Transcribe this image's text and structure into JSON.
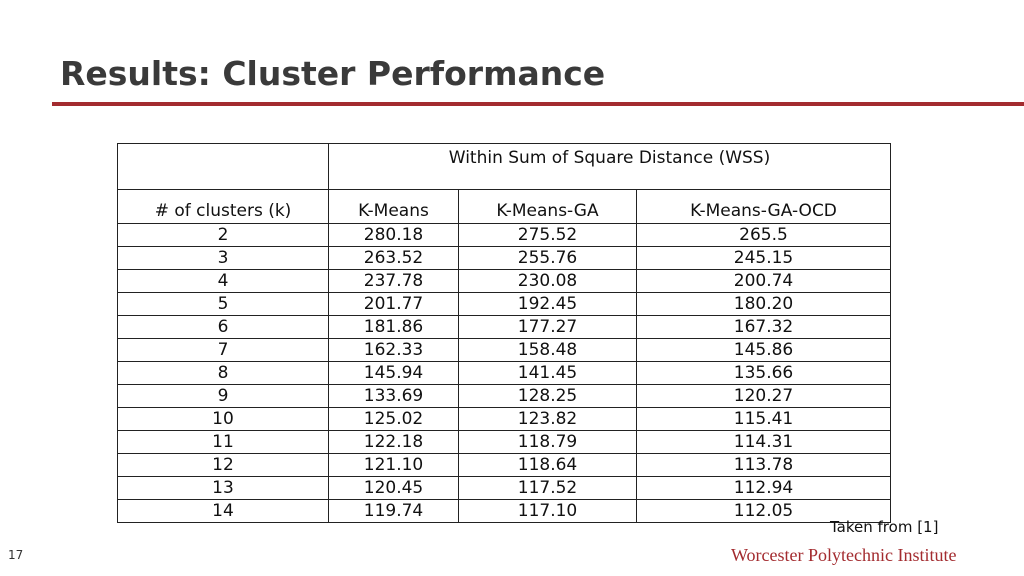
{
  "slide": {
    "title": "Results: Cluster Performance",
    "attribution": "Taken from [1]",
    "page_number": "17",
    "institution": "Worcester Polytechnic Institute",
    "accent_color": "#a32b2f"
  },
  "table": {
    "group_header": "Within Sum of Square Distance (WSS)",
    "headers": [
      "# of clusters (k)",
      "K-Means",
      "K-Means-GA",
      "K-Means-GA-OCD"
    ],
    "rows": [
      [
        "2",
        "280.18",
        "275.52",
        "265.5"
      ],
      [
        "3",
        "263.52",
        "255.76",
        "245.15"
      ],
      [
        "4",
        "237.78",
        "230.08",
        "200.74"
      ],
      [
        "5",
        "201.77",
        "192.45",
        "180.20"
      ],
      [
        "6",
        "181.86",
        "177.27",
        "167.32"
      ],
      [
        "7",
        "162.33",
        "158.48",
        "145.86"
      ],
      [
        "8",
        "145.94",
        "141.45",
        "135.66"
      ],
      [
        "9",
        "133.69",
        "128.25",
        "120.27"
      ],
      [
        "10",
        "125.02",
        "123.82",
        "115.41"
      ],
      [
        "11",
        "122.18",
        "118.79",
        "114.31"
      ],
      [
        "12",
        "121.10",
        "118.64",
        "113.78"
      ],
      [
        "13",
        "120.45",
        "117.52",
        "112.94"
      ],
      [
        "14",
        "119.74",
        "117.10",
        "112.05"
      ]
    ]
  }
}
